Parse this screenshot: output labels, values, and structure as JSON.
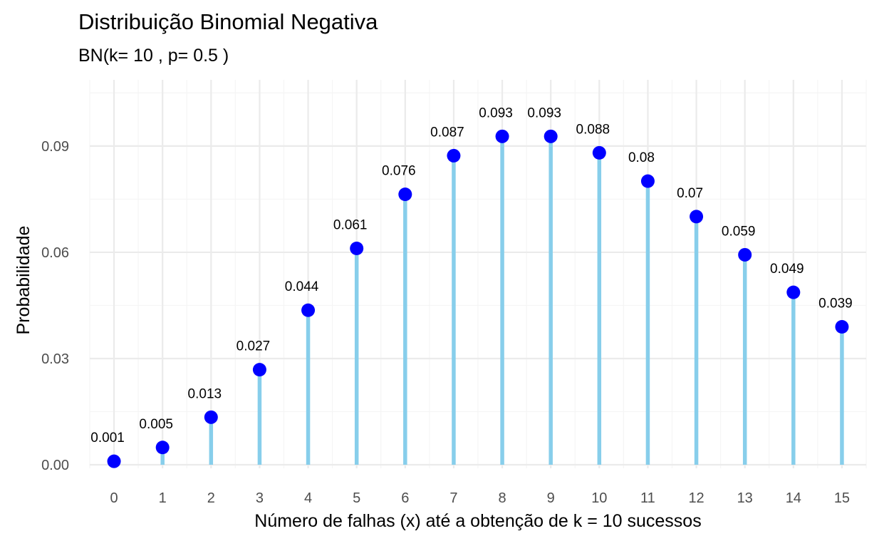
{
  "chart_data": {
    "type": "lollipop",
    "title": "Distribuição Binomial Negativa",
    "subtitle": "BN(k= 10 , p= 0.5 )",
    "xlabel": "Número de falhas (x) até a obtenção de k = 10 sucessos",
    "ylabel": "Probabilidade",
    "x": [
      0,
      1,
      2,
      3,
      4,
      5,
      6,
      7,
      8,
      9,
      10,
      11,
      12,
      13,
      14,
      15
    ],
    "y": [
      0.000977,
      0.004883,
      0.013428,
      0.026855,
      0.04364,
      0.061096,
      0.07637,
      0.08728,
      0.092735,
      0.092735,
      0.088099,
      0.08009,
      0.070078,
      0.059297,
      0.048696,
      0.038957
    ],
    "data_labels": [
      "0.001",
      "0.005",
      "0.013",
      "0.027",
      "0.044",
      "0.061",
      "0.076",
      "0.087",
      "0.093",
      "0.093",
      "0.088",
      "0.08",
      "0.07",
      "0.059",
      "0.049",
      "0.039"
    ],
    "x_ticks": [
      "0",
      "1",
      "2",
      "3",
      "4",
      "5",
      "6",
      "7",
      "8",
      "9",
      "10",
      "11",
      "12",
      "13",
      "14",
      "15"
    ],
    "y_ticks": [
      "0.00",
      "0.03",
      "0.06",
      "0.09"
    ],
    "y_tick_values": [
      0,
      0.03,
      0.06,
      0.09
    ],
    "xlim": [
      -0.5,
      15.5
    ],
    "ylim": [
      -0.001,
      0.1087
    ],
    "grid": true,
    "legend": "none",
    "colors": {
      "stem": "#87CEEB",
      "point": "#0000FF",
      "grid_major": "#EBEBEB",
      "grid_minor": "#F5F5F5",
      "tick_text": "#4D4D4D",
      "title_text": "#000000"
    }
  }
}
